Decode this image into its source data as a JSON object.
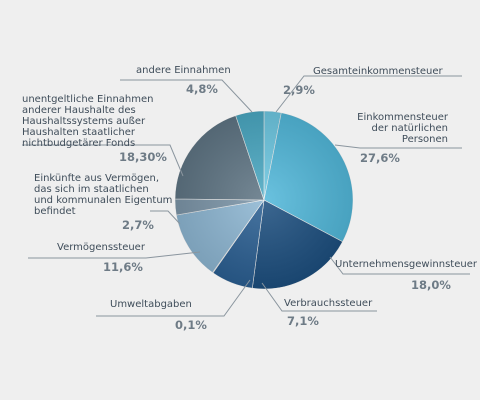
{
  "chart_data": {
    "type": "pie",
    "title": "",
    "slices": [
      {
        "label": "Gesamteinkommensteuer",
        "value_label": "2,9%",
        "value": 2.9,
        "color": "#6ec8e2"
      },
      {
        "label": "Einkommensteuer der natürlichen Personen",
        "value_label": "27,6%",
        "value": 27.6,
        "color": "#52b8da"
      },
      {
        "label": "Unternehmensgewinnsteuer",
        "value_label": "18,0%",
        "value": 18.0,
        "color": "#1d4f7f"
      },
      {
        "label": "Verbrauchssteuer",
        "value_label": "7,1%",
        "value": 7.1,
        "color": "#2b5f92"
      },
      {
        "label": "Umweltabgaben",
        "value_label": "0,1%",
        "value": 0.1,
        "color": "#16283d"
      },
      {
        "label": "Vermögenssteuer",
        "value_label": "11,6%",
        "value": 11.6,
        "color": "#8db6d2"
      },
      {
        "label": "Einkünfte aus Vermögen, das sich im staatlichen und kommunalen Eigentum befindet",
        "value_label": "2,7%",
        "value": 2.7,
        "color": "#7c95a8"
      },
      {
        "label": "unentgeltliche Einnahmen anderer Haushalte des Haushaltssystems außer Haushalten staatlicher nichtbudgetärer Fonds",
        "value_label": "18,30%",
        "value": 18.3,
        "color": "#5f7584"
      },
      {
        "label": "andere Einnahmen",
        "value_label": "4,8%",
        "value": 4.8,
        "color": "#4aa8c2"
      }
    ]
  },
  "labels": {
    "gesamt": "Gesamteinkommensteuer",
    "einkommen": [
      "Einkommensteuer",
      "der natürlichen",
      "Personen"
    ],
    "unternehmen": "Unternehmensgewinnsteuer",
    "verbrauch": "Verbrauchssteuer",
    "umwelt": "Umweltabgaben",
    "vermoegen": "Vermögenssteuer",
    "einkuenfte": [
      "Einkünfte aus Vermögen,",
      "das sich im staatlichen",
      "und kommunalen Eigentum",
      "befindet"
    ],
    "unentgeltlich": [
      "unentgeltliche Einnahmen",
      "anderer Haushalte des",
      "Haushaltssystems außer",
      "Haushalten staatlicher",
      "nichtbudgetärer Fonds"
    ],
    "andere": "andere Einnahmen"
  }
}
